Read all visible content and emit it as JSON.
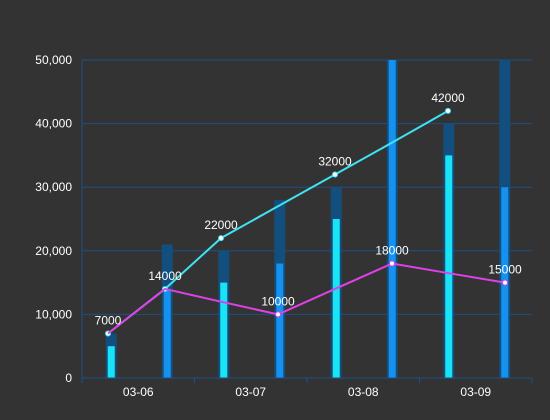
{
  "colors": {
    "background": "#333333",
    "axis": "#1f4f86",
    "grid": "#1f4f86",
    "bar_cyan": "#19e3f5",
    "bar_blue": "#1591f0",
    "bar_shadow": "#134f7e",
    "line_cyan": "#3fe3f3",
    "line_magenta": "#e040e8",
    "text": "#ffffff"
  },
  "chart_data": {
    "type": "bar",
    "categories": [
      "03-06",
      "03-07",
      "03-08",
      "03-09"
    ],
    "y_ticks": [
      "0",
      "10,000",
      "20,000",
      "30,000",
      "40,000",
      "50,000"
    ],
    "ylim": [
      0,
      50000
    ],
    "grid": true,
    "bar_series": [
      {
        "color": "#19e3f5",
        "values": [
          5000,
          15000,
          25000,
          35000
        ],
        "shadow_values": [
          7000,
          20000,
          30000,
          40000
        ]
      },
      {
        "color": "#1591f0",
        "values": [
          14000,
          18000,
          50000,
          30000
        ],
        "shadow_values": [
          21000,
          28000,
          50000,
          50000
        ]
      }
    ],
    "line_series": [
      {
        "color": "#3fe3f3",
        "values": [
          7000,
          14000,
          22000,
          27000,
          32000,
          37000,
          42000
        ],
        "labels": [
          "7000",
          "14000",
          "22000",
          "",
          "32000",
          "",
          "42000"
        ]
      },
      {
        "color": "#e040e8",
        "values": [
          7000,
          14000,
          12000,
          10000,
          14000,
          18000,
          16500,
          15000
        ],
        "labels": [
          "",
          "",
          "",
          "10000",
          "",
          "18000",
          "",
          "15000"
        ]
      }
    ]
  }
}
